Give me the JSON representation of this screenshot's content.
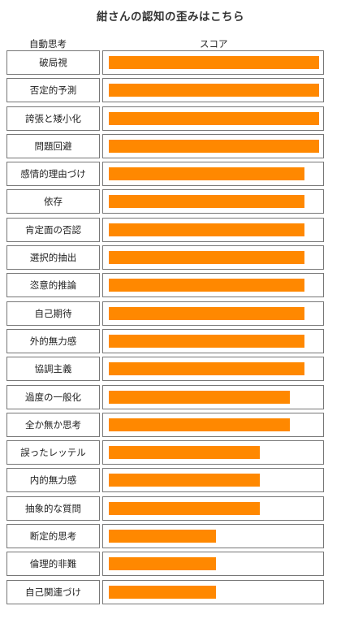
{
  "title": "紺さんの認知の歪みはこちら",
  "header": {
    "label_col": "自動思考",
    "score_col": "スコア"
  },
  "colors": {
    "bar": "#ff8800",
    "border": "#777777"
  },
  "chart_data": {
    "type": "bar",
    "orientation": "horizontal",
    "title": "紺さんの認知の歪みはこちら",
    "xlabel": "スコア",
    "ylabel": "自動思考",
    "xlim": [
      0,
      100
    ],
    "categories": [
      "破局視",
      "否定的予測",
      "誇張と矮小化",
      "問題回避",
      "感情的理由づけ",
      "依存",
      "肯定面の否認",
      "選択的抽出",
      "恣意的推論",
      "自己期待",
      "外的無力感",
      "協調主義",
      "過度の一般化",
      "全か無か思考",
      "誤ったレッテル",
      "内的無力感",
      "抽象的な質問",
      "断定的思考",
      "倫理的非難",
      "自己関連づけ"
    ],
    "values": [
      100,
      100,
      100,
      100,
      93,
      93,
      93,
      93,
      93,
      93,
      93,
      93,
      86,
      86,
      72,
      72,
      72,
      51,
      51,
      51
    ],
    "grid": false,
    "legend": "none"
  }
}
